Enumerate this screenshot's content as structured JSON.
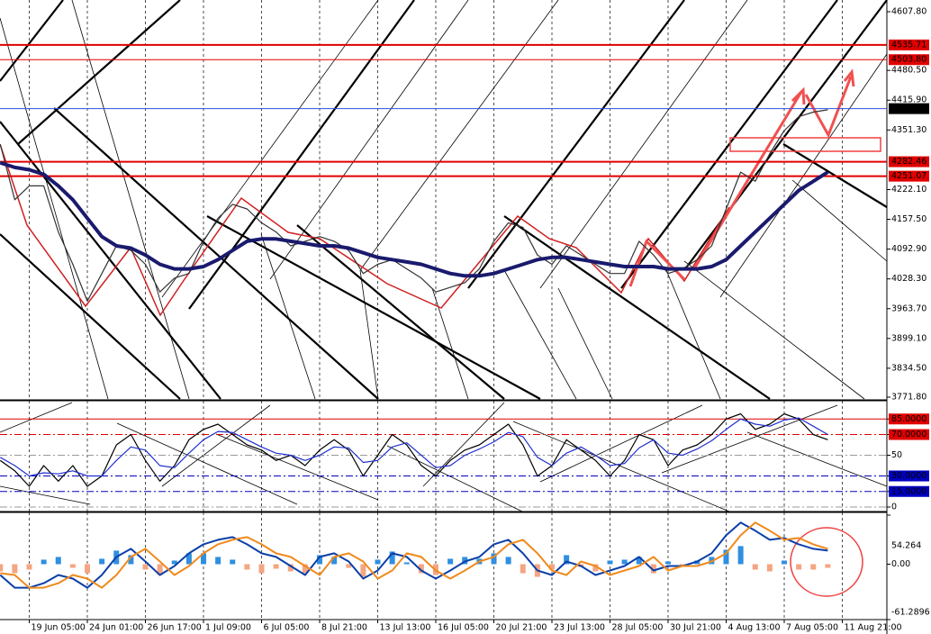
{
  "chart_data": [
    {
      "type": "line",
      "ylim": [
        3767.9,
        4633.2
      ],
      "yticks": [
        {
          "value": 4607.8,
          "label": "4607.80"
        },
        {
          "value": 4480.5,
          "label": "4480.50"
        },
        {
          "value": 4415.9,
          "label": "4415.90"
        },
        {
          "value": 4351.3,
          "label": "4351.30"
        },
        {
          "value": 4222.1,
          "label": "4222.10"
        },
        {
          "value": 4157.5,
          "label": "4157.50"
        },
        {
          "value": 4092.9,
          "label": "4092.90"
        },
        {
          "value": 4028.3,
          "label": "4028.30"
        },
        {
          "value": 3963.7,
          "label": "3963.70"
        },
        {
          "value": 3899.1,
          "label": "3899.10"
        },
        {
          "value": 3834.5,
          "label": "3834.50"
        },
        {
          "value": 3771.8,
          "label": "3771.80"
        }
      ],
      "levels": [
        {
          "value": 4535.71,
          "color": "#e00000"
        },
        {
          "value": {
            "value": 4503.8,
            "label": "4503.80"
          },
          "color": "#e00000"
        },
        {
          "value": 4397.58,
          "color": "#3050e0"
        },
        {
          "value": 4282.46,
          "color": "#e00000"
        },
        {
          "value": 4251.07,
          "color": "#e00000"
        }
      ],
      "series": [
        {
          "color": "#333333",
          "values": [
            4320,
            4200,
            4230,
            4230,
            4130,
            4060,
            3980,
            4040,
            4100,
            4090,
            4060,
            4000,
            4030,
            4040,
            4110,
            4160,
            4190,
            4180,
            4150,
            4130,
            4100,
            4110,
            4120,
            4110,
            4090,
            4040,
            4060,
            4070,
            4050,
            4030,
            4000,
            4010,
            4020,
            4050,
            4110,
            4150,
            4140,
            4080,
            4060,
            4100,
            4080,
            4060,
            4040,
            4040,
            4110,
            4080,
            4040,
            4050,
            4070,
            4100,
            4180,
            4260,
            4240,
            4300,
            4350,
            4380,
            4390,
            4395,
            null,
            null,
            null,
            null
          ]
        },
        {
          "color": "#1a1a6e",
          "values": [
            4280,
            4270,
            4265,
            4255,
            4230,
            4200,
            4160,
            4120,
            4100,
            4095,
            4080,
            4060,
            4050,
            4050,
            4055,
            4070,
            4090,
            4110,
            4115,
            4115,
            4110,
            4105,
            4100,
            4100,
            4095,
            4085,
            4075,
            4070,
            4065,
            4060,
            4050,
            4040,
            4035,
            4035,
            4040,
            4050,
            4060,
            4070,
            4075,
            4075,
            4070,
            4065,
            4060,
            4055,
            4055,
            4055,
            4050,
            4050,
            4050,
            4055,
            4070,
            4100,
            4130,
            4160,
            4190,
            4220,
            4240,
            4260,
            null,
            null,
            null,
            null
          ]
        }
      ]
    },
    {
      "type": "line",
      "ylim": [
        0,
        100
      ],
      "yticks": [
        {
          "value": 85,
          "label": "85.0000"
        },
        {
          "value": 70,
          "label": "70.0000"
        },
        50,
        {
          "value": 30,
          "label": "30.0000"
        },
        {
          "value": 15,
          "label": "15.0000"
        },
        0
      ],
      "tick_colors": [
        "#e00000",
        "#e00000",
        "#999999",
        "#0000c0",
        "#0000c0",
        "#999999"
      ],
      "series": [
        {
          "color": "#000000",
          "values": [
            45,
            35,
            20,
            40,
            25,
            40,
            20,
            30,
            60,
            70,
            45,
            25,
            40,
            65,
            75,
            80,
            70,
            60,
            55,
            45,
            50,
            40,
            55,
            65,
            55,
            30,
            50,
            70,
            60,
            40,
            30,
            45,
            55,
            60,
            70,
            80,
            60,
            30,
            40,
            65,
            55,
            45,
            30,
            45,
            70,
            65,
            40,
            55,
            60,
            70,
            85,
            90,
            75,
            80,
            90,
            85,
            70,
            65,
            null,
            null,
            null,
            null
          ]
        },
        {
          "color": "#2030d0",
          "values": [
            48,
            40,
            30,
            33,
            32,
            35,
            30,
            30,
            45,
            58,
            55,
            40,
            38,
            52,
            65,
            73,
            72,
            65,
            58,
            52,
            50,
            45,
            50,
            58,
            57,
            43,
            45,
            58,
            62,
            50,
            38,
            40,
            50,
            56,
            63,
            72,
            68,
            48,
            40,
            52,
            58,
            50,
            40,
            42,
            57,
            65,
            52,
            50,
            56,
            64,
            75,
            85,
            80,
            78,
            84,
            86,
            78,
            70,
            null,
            null,
            null,
            null
          ]
        }
      ]
    },
    {
      "type": "bar",
      "ylim": [
        -61.2896,
        54.264
      ],
      "yticks": [
        54.264,
        {
          "value": 0,
          "label": "0.00"
        },
        -61.2896
      ],
      "categories": [
        null,
        null,
        "19 Jun 05:00",
        null,
        null,
        null,
        "24 Jun 01:00",
        null,
        null,
        null,
        "26 Jun 17:00",
        null,
        null,
        null,
        "1 Jul 09:00",
        null,
        null,
        null,
        "6 Jul 05:00",
        null,
        null,
        null,
        "8 Jul 21:00",
        null,
        null,
        null,
        "13 Jul 13:00",
        null,
        null,
        null,
        "16 Jul 05:00",
        null,
        null,
        null,
        "20 Jul 21:00",
        null,
        null,
        null,
        "23 Jul 13:00",
        null,
        null,
        null,
        "28 Jul 05:00",
        null,
        null,
        null,
        "30 Jul 21:00",
        null,
        null,
        null,
        "4 Aug 13:00",
        null,
        null,
        null,
        "7 Aug 05:00",
        null,
        null,
        null,
        "11 Aug 21:00",
        null,
        null,
        null
      ],
      "series": [
        {
          "color": "#2f8fe0",
          "negative_color": "#f4a582",
          "values": [
            -8,
            -10,
            -6,
            5,
            8,
            -4,
            -10,
            6,
            15,
            10,
            -6,
            -12,
            4,
            12,
            12,
            8,
            5,
            -6,
            -10,
            -5,
            -8,
            -10,
            10,
            8,
            -4,
            -14,
            5,
            14,
            2,
            -10,
            -12,
            6,
            8,
            6,
            12,
            8,
            -10,
            -14,
            -6,
            10,
            -3,
            -8,
            4,
            5,
            8,
            -10,
            3,
            -2,
            4,
            8,
            16,
            20,
            -6,
            -8,
            4,
            -6,
            -6,
            -4,
            null,
            null,
            null,
            null
          ]
        },
        {
          "color": "#0b3fa8",
          "values": [
            -12,
            -26,
            -26,
            -21,
            -12,
            -16,
            -26,
            -12,
            8,
            17,
            3,
            -12,
            -2,
            12,
            22,
            27,
            30,
            22,
            12,
            8,
            -2,
            -12,
            8,
            12,
            3,
            -16,
            -7,
            12,
            8,
            -7,
            -16,
            -7,
            3,
            8,
            22,
            27,
            12,
            -7,
            -12,
            3,
            -2,
            -12,
            -7,
            -2,
            8,
            -7,
            -2,
            -2,
            3,
            12,
            32,
            46,
            37,
            27,
            29,
            22,
            17,
            15,
            null,
            null,
            null,
            null
          ]
        },
        {
          "color": "#f08a1c",
          "values": [
            -10,
            -12,
            -26,
            -26,
            -21,
            -12,
            -16,
            -26,
            -12,
            8,
            17,
            3,
            -12,
            -2,
            12,
            22,
            27,
            30,
            22,
            12,
            8,
            -2,
            -12,
            8,
            12,
            3,
            -16,
            -7,
            12,
            8,
            -7,
            -16,
            -7,
            3,
            8,
            22,
            27,
            12,
            -7,
            -12,
            3,
            -2,
            -12,
            -7,
            -2,
            8,
            -7,
            -2,
            -2,
            3,
            12,
            32,
            46,
            37,
            27,
            29,
            22,
            17,
            null,
            null,
            null,
            null
          ]
        }
      ]
    }
  ]
}
